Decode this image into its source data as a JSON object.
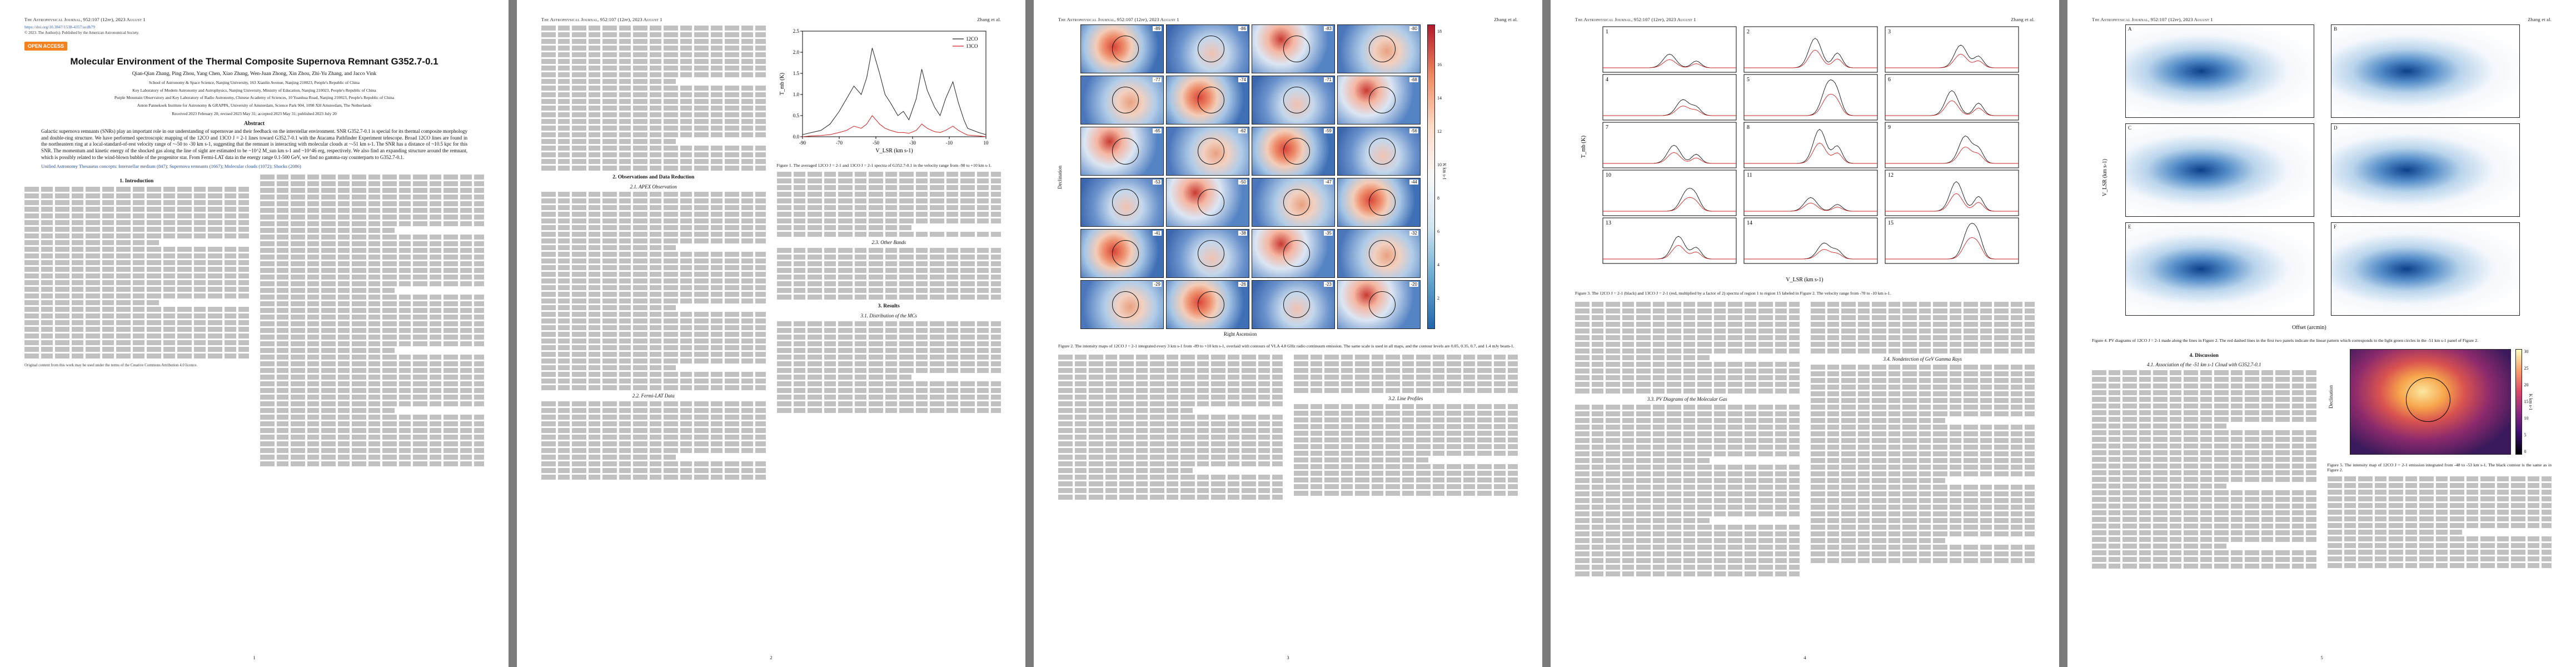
{
  "journal": "The Astrophysical Journal, 952:107 (12pp), 2023 August 1",
  "short_author": "Zhang et al.",
  "p1": {
    "doi": "https://doi.org/10.3847/1538-4357/acdb79",
    "copyright": "© 2023. The Author(s). Published by the American Astronomical Society.",
    "open_access": "OPEN ACCESS",
    "title": "Molecular Environment of the Thermal Composite Supernova Remnant G352.7-0.1",
    "authors": "Qian-Qian Zhang, Ping Zhou, Yang Chen, Xiao Zhang, Wen-Juan Zhong, Xin Zhou, Zhi-Yu Zhang, and Jacco Vink",
    "affil1": "School of Astronomy & Space Science, Nanjing University, 163 Xianlin Avenue, Nanjing 210023, People's Republic of China",
    "affil2": "Key Laboratory of Modern Astronomy and Astrophysics, Nanjing University, Ministry of Education, Nanjing 210023, People's Republic of China",
    "affil3": "Purple Mountain Observatory and Key Laboratory of Radio Astronomy, Chinese Academy of Sciences, 10 Yuanhua Road, Nanjing 210023, People's Republic of China",
    "affil4": "Anton Pannekoek Institute for Astronomy & GRAPPA, University of Amsterdam, Science Park 904, 1098 XH Amsterdam, The Netherlands",
    "dates": "Received 2023 February 20; revised 2023 May 31; accepted 2023 May 31; published 2023 July 20",
    "abstract_head": "Abstract",
    "abstract": "Galactic supernova remnants (SNRs) play an important role in our understanding of supernovae and their feedback on the interstellar environment. SNR G352.7-0.1 is special for its thermal composite morphology and double-ring structure. We have performed spectroscopic mapping of the 12CO and 13CO J = 2-1 lines toward G352.7-0.1 with the Atacama Pathfinder Experiment telescope. Broad 12CO lines are found in the northeastern ring at a local-standard-of-rest velocity range of ~-50 to -30 km s-1, suggesting that the remnant is interacting with molecular clouds at ~-51 km s-1. The SNR has a distance of ~10.5 kpc for this SNR. The momentum and kinetic energy of the shocked gas along the line of sight are estimated to be ~10^2 M_sun km s-1 and ~10^46 erg, respectively. We also find an expanding structure around the remnant, which is possibly related to the wind-blown bubble of the progenitor star. From Fermi-LAT data in the energy range 0.1-500 GeV, we find no gamma-ray counterparts to G352.7-0.1.",
    "keywords": "Unified Astronomy Thesaurus concepts: Interstellar medium (847); Supernova remnants (1667); Molecular clouds (1072); Shocks (2086)",
    "intro_head": "1. Introduction",
    "cc": "Original content from this work may be used under the terms of the Creative Commons Attribution 4.0 licence."
  },
  "p2": {
    "obs_head": "2. Observations and Data Reduction",
    "apex_head": "2.1. APEX Observation",
    "fermi_head": "2.2. Fermi-LAT Data",
    "fig1_caption": "Figure 1. The averaged 12CO J = 2-1 and 13CO J = 2-1 spectra of G352.7-0.1 in the velocity range from -90 to +10 km s-1.",
    "legend_12": "12CO",
    "legend_13": "13CO",
    "xlabel": "V_LSR (km s-1)",
    "ylabel": "T_mb (K)",
    "colorbar_label": "K km s-1",
    "res_head": "3. Results",
    "other_head": "2.3. Other Bands",
    "dist_head": "3.1. Distribution of the MCs"
  },
  "p3": {
    "fig2_caption": "Figure 2. The intensity maps of 12CO J = 2-1 integrated every 3 km s-1 from -89 to +10 km s-1, overlaid with contours of VLA 4.8 GHz radio continuum emission. The same scale is used in all maps, and the contour levels are 0.05, 0.35, 0.7, and 1.4 mJy beam-1.",
    "xlabel": "Right Ascension",
    "ylabel": "Declination",
    "line_head": "3.2. Line Profiles",
    "pv_head": "3.3. PV Diagrams of the Molecular Gas"
  },
  "p4": {
    "fig3_caption": "Figure 3. The 12CO J = 2-1 (black) and 13CO J = 2-1 (red, multiplied by a factor of 2) spectra of region 1 to region 15 labeled in Figure 2. The velocity range from -70 to -10 km s-1.",
    "xlabel": "V_LSR (km s-1)",
    "ylabel": "T_mb (K)",
    "pv_head": "3.3. PV Diagrams of the Molecular Gas",
    "gamma_head": "3.4. Nondetection of GeV Gamma Rays"
  },
  "p5": {
    "fig4_caption": "Figure 4. PV diagrams of 12CO J = 2-1 made along the lines in Figure 2. The red dashed lines in the first two panels indicate the linear pattern which corresponds to the light green circles in the -51 km s-1 panel of Figure 2.",
    "xlabel": "Offset (arcmin)",
    "ylabel": "V_LSR (km s-1)",
    "disc_head": "4. Discussion",
    "assoc_head": "4.1. Association of the -51 km s-1 Cloud with G352.7-0.1",
    "fig5_caption": "Figure 5. The intensity map of 12CO J = 2-1 emission integrated from -48 to -53 km s-1. The black contour is the same as in Figure 2.",
    "colorbar_label": "K km s-1"
  },
  "page_numbers": [
    "1",
    "2",
    "3",
    "4",
    "5"
  ],
  "fig1": {
    "chart_data": {
      "type": "line",
      "xlabel": "V_LSR (km s-1)",
      "ylabel": "T_mb (K)",
      "xlim": [
        -90,
        10
      ],
      "ylim": [
        0,
        2.5
      ],
      "series": [
        {
          "name": "12CO",
          "color": "#222222",
          "x": [
            -90,
            -85,
            -80,
            -75,
            -70,
            -66,
            -62,
            -58,
            -55,
            -52,
            -50,
            -48,
            -45,
            -42,
            -38,
            -35,
            -32,
            -28,
            -25,
            -22,
            -18,
            -15,
            -12,
            -8,
            -5,
            -2,
            0,
            3,
            6,
            10
          ],
          "y": [
            0.05,
            0.1,
            0.15,
            0.3,
            0.6,
            0.9,
            1.2,
            1.0,
            1.4,
            2.1,
            1.8,
            1.5,
            1.0,
            0.8,
            0.5,
            0.6,
            0.4,
            0.9,
            1.6,
            1.1,
            0.7,
            0.5,
            0.9,
            1.3,
            0.8,
            0.4,
            0.2,
            0.15,
            0.1,
            0.05
          ]
        },
        {
          "name": "13CO",
          "color": "#d02020",
          "x": [
            -90,
            -85,
            -80,
            -75,
            -70,
            -66,
            -62,
            -58,
            -55,
            -52,
            -50,
            -48,
            -45,
            -42,
            -38,
            -35,
            -32,
            -28,
            -25,
            -22,
            -18,
            -15,
            -12,
            -8,
            -5,
            -2,
            0,
            3,
            6,
            10
          ],
          "y": [
            0.0,
            0.02,
            0.03,
            0.05,
            0.1,
            0.15,
            0.25,
            0.2,
            0.3,
            0.5,
            0.4,
            0.3,
            0.2,
            0.15,
            0.1,
            0.1,
            0.08,
            0.15,
            0.3,
            0.2,
            0.12,
            0.1,
            0.15,
            0.25,
            0.15,
            0.08,
            0.04,
            0.03,
            0.02,
            0.0
          ]
        }
      ]
    }
  },
  "colorbar_ticks": [
    "18",
    "16",
    "14",
    "12",
    "10",
    "8",
    "6",
    "4",
    "2"
  ],
  "fig5_ticks": [
    "30",
    "25",
    "20",
    "15",
    "10",
    "5",
    "0"
  ],
  "fig2_panel_labels": [
    "-89",
    "-86",
    "-83",
    "-80",
    "-77",
    "-74",
    "-71",
    "-68",
    "-65",
    "-62",
    "-59",
    "-56",
    "-53",
    "-50",
    "-47",
    "-44",
    "-41",
    "-38",
    "-35",
    "-32",
    "-29",
    "-26",
    "-23",
    "-20"
  ],
  "fig3_region_labels": [
    "1",
    "2",
    "3",
    "4",
    "5",
    "6",
    "7",
    "8",
    "9",
    "10",
    "11",
    "12",
    "13",
    "14",
    "15"
  ],
  "fig4_panel_labels": [
    "A",
    "B",
    "C",
    "D",
    "E",
    "F"
  ]
}
